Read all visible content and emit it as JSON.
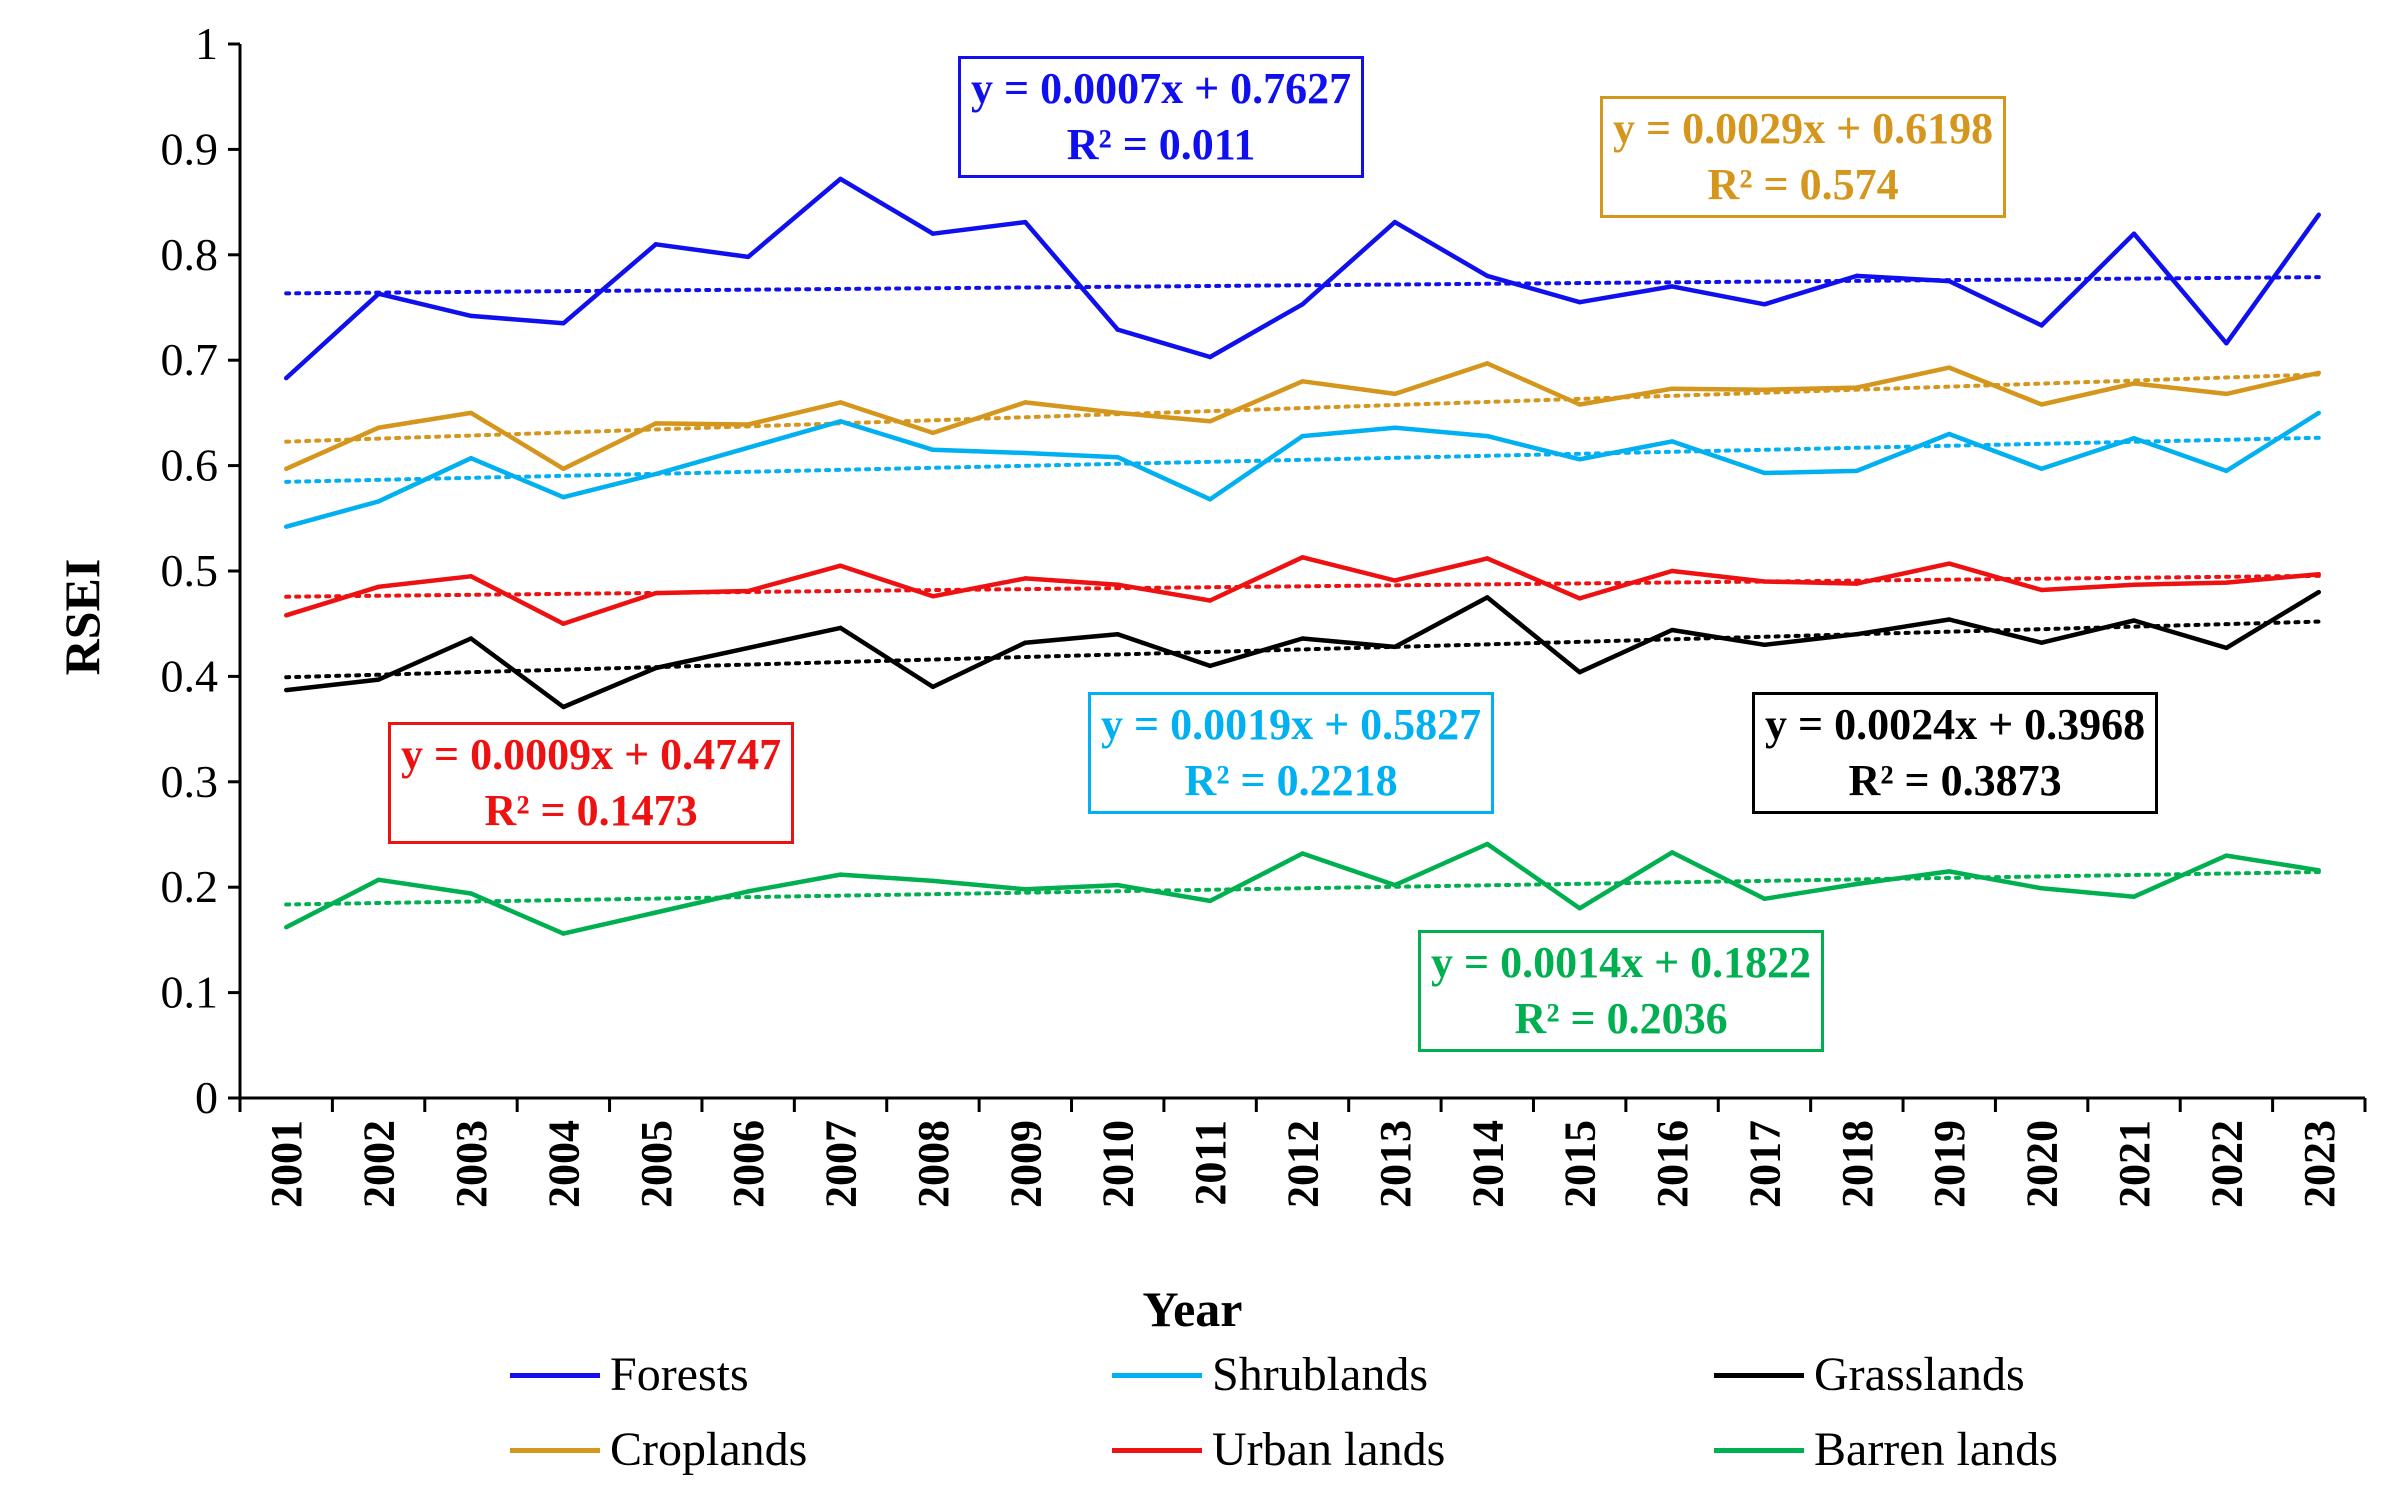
{
  "chart_data": {
    "type": "line",
    "title": "",
    "xlabel": "Year",
    "ylabel": "RSEI",
    "ylim": [
      0,
      1
    ],
    "yticks": [
      "0",
      "0.1",
      "0.2",
      "0.3",
      "0.4",
      "0.5",
      "0.6",
      "0.7",
      "0.8",
      "0.9",
      "1"
    ],
    "categories": [
      "2001",
      "2002",
      "2003",
      "2004",
      "2005",
      "2006",
      "2007",
      "2008",
      "2009",
      "2010",
      "2011",
      "2012",
      "2013",
      "2014",
      "2015",
      "2016",
      "2017",
      "2018",
      "2019",
      "2020",
      "2021",
      "2022",
      "2023"
    ],
    "series": [
      {
        "name": "Forests",
        "color": "#1010ee",
        "values": [
          0.683,
          0.763,
          0.742,
          0.735,
          0.81,
          0.798,
          0.872,
          0.82,
          0.831,
          0.729,
          0.703,
          0.753,
          0.831,
          0.78,
          0.755,
          0.77,
          0.753,
          0.78,
          0.775,
          0.733,
          0.82,
          0.716,
          0.838
        ],
        "trend": {
          "slope": 0.0007,
          "intercept": 0.7627,
          "equation": "y = 0.0007x + 0.7627",
          "r2": "R² = 0.011"
        }
      },
      {
        "name": "Shrublands",
        "color": "#00b0f0",
        "values": [
          0.542,
          0.566,
          0.607,
          0.57,
          0.592,
          0.617,
          0.642,
          0.615,
          0.612,
          0.608,
          0.568,
          0.628,
          0.636,
          0.628,
          0.606,
          0.623,
          0.593,
          0.595,
          0.63,
          0.597,
          0.626,
          0.595,
          0.65
        ],
        "trend": {
          "slope": 0.0019,
          "intercept": 0.5827,
          "equation": "y = 0.0019x + 0.5827",
          "r2": "R² = 0.2218"
        }
      },
      {
        "name": "Grasslands",
        "color": "#000000",
        "values": [
          0.387,
          0.397,
          0.436,
          0.371,
          0.408,
          0.427,
          0.446,
          0.39,
          0.432,
          0.44,
          0.41,
          0.436,
          0.428,
          0.475,
          0.404,
          0.444,
          0.43,
          0.44,
          0.454,
          0.432,
          0.453,
          0.427,
          0.48
        ],
        "trend": {
          "slope": 0.0024,
          "intercept": 0.3968,
          "equation": "y = 0.0024x + 0.3968",
          "r2": "R² = 0.3873"
        }
      },
      {
        "name": "Croplands",
        "color": "#d4961c",
        "values": [
          0.597,
          0.636,
          0.65,
          0.597,
          0.64,
          0.639,
          0.66,
          0.631,
          0.66,
          0.65,
          0.642,
          0.68,
          0.668,
          0.697,
          0.658,
          0.673,
          0.672,
          0.674,
          0.693,
          0.658,
          0.678,
          0.668,
          0.688
        ],
        "trend": {
          "slope": 0.0029,
          "intercept": 0.6198,
          "equation": "y = 0.0029x + 0.6198",
          "r2": "R² = 0.574"
        }
      },
      {
        "name": "Urban lands",
        "color": "#ee1111",
        "values": [
          0.458,
          0.485,
          0.495,
          0.45,
          0.479,
          0.481,
          0.505,
          0.476,
          0.493,
          0.487,
          0.472,
          0.513,
          0.491,
          0.512,
          0.474,
          0.5,
          0.49,
          0.488,
          0.507,
          0.482,
          0.487,
          0.489,
          0.497
        ],
        "trend": {
          "slope": 0.0009,
          "intercept": 0.4747,
          "equation": "y = 0.0009x + 0.4747",
          "r2": "R² = 0.1473"
        }
      },
      {
        "name": "Barren lands",
        "color": "#00b050",
        "values": [
          0.162,
          0.207,
          0.194,
          0.156,
          0.176,
          0.196,
          0.212,
          0.206,
          0.198,
          0.202,
          0.187,
          0.232,
          0.202,
          0.241,
          0.18,
          0.233,
          0.189,
          0.203,
          0.215,
          0.199,
          0.191,
          0.23,
          0.216
        ],
        "trend": {
          "slope": 0.0014,
          "intercept": 0.1822,
          "equation": "y = 0.0014x + 0.1822",
          "r2": "R² = 0.2036"
        }
      }
    ]
  }
}
